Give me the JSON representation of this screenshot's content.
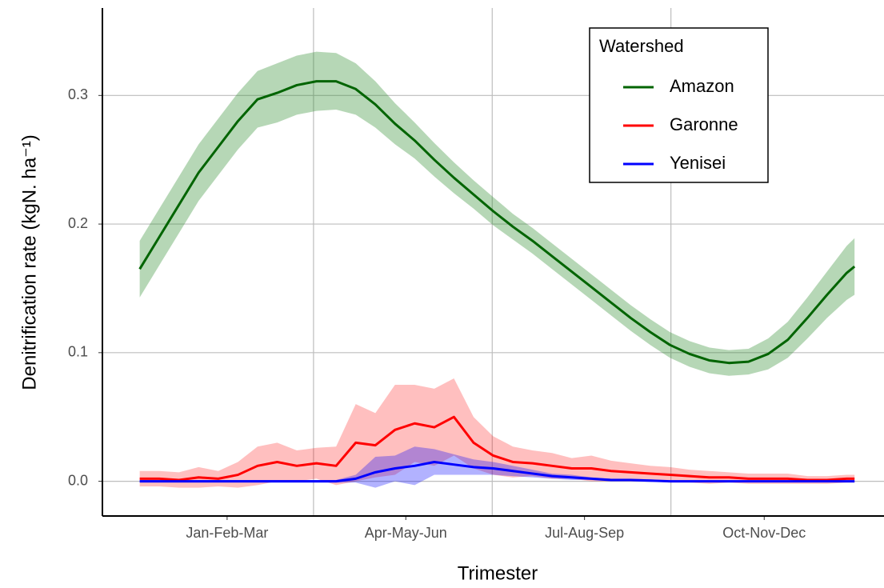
{
  "chart_data": {
    "type": "line",
    "xlabel": "Trimester",
    "ylabel": "Denitrification rate (kgN. ha⁻¹)",
    "legend_title": "Watershed",
    "legend": "top-right",
    "grid": true,
    "x": [
      1,
      11,
      21,
      31,
      41,
      51,
      61,
      71,
      81,
      91,
      101,
      111,
      121,
      131,
      141,
      151,
      161,
      171,
      181,
      191,
      201,
      211,
      221,
      231,
      241,
      251,
      261,
      271,
      281,
      291,
      301,
      311,
      321,
      331,
      341,
      351,
      361,
      365
    ],
    "xlim": [
      -18,
      380
    ],
    "xticks": [
      {
        "value": 45.5,
        "label": "Jan-Feb-Mar"
      },
      {
        "value": 136.5,
        "label": "Apr-May-Jun"
      },
      {
        "value": 227.5,
        "label": "Jul-Aug-Sep"
      },
      {
        "value": 319,
        "label": "Oct-Nov-Dec"
      }
    ],
    "xgrid": [
      89.5,
      180.5,
      271.5
    ],
    "ylim": [
      -0.027,
      0.368
    ],
    "yticks": [
      {
        "value": 0,
        "label": "0.0"
      },
      0.1,
      0.2,
      0.3
    ],
    "series": [
      {
        "name": "Amazon",
        "color": "#006400",
        "band_color": "#2e8b2e",
        "values": [
          0.165,
          0.19,
          0.215,
          0.24,
          0.26,
          0.28,
          0.297,
          0.302,
          0.308,
          0.311,
          0.311,
          0.305,
          0.293,
          0.278,
          0.265,
          0.25,
          0.236,
          0.223,
          0.21,
          0.198,
          0.187,
          0.175,
          0.163,
          0.151,
          0.139,
          0.127,
          0.116,
          0.106,
          0.099,
          0.094,
          0.092,
          0.093,
          0.099,
          0.11,
          0.127,
          0.145,
          0.162,
          0.167
        ],
        "errors": [
          0.022,
          0.022,
          0.022,
          0.022,
          0.022,
          0.022,
          0.022,
          0.023,
          0.023,
          0.023,
          0.022,
          0.02,
          0.018,
          0.016,
          0.014,
          0.013,
          0.012,
          0.011,
          0.011,
          0.01,
          0.01,
          0.01,
          0.01,
          0.01,
          0.01,
          0.01,
          0.01,
          0.01,
          0.01,
          0.01,
          0.01,
          0.01,
          0.012,
          0.014,
          0.016,
          0.018,
          0.021,
          0.022
        ]
      },
      {
        "name": "Garonne",
        "color": "#ff0000",
        "band_color": "#ff0000",
        "values": [
          0.002,
          0.002,
          0.001,
          0.003,
          0.002,
          0.005,
          0.012,
          0.015,
          0.012,
          0.014,
          0.012,
          0.03,
          0.028,
          0.04,
          0.045,
          0.042,
          0.05,
          0.03,
          0.02,
          0.015,
          0.014,
          0.012,
          0.01,
          0.01,
          0.008,
          0.007,
          0.006,
          0.005,
          0.004,
          0.003,
          0.003,
          0.002,
          0.002,
          0.002,
          0.001,
          0.001,
          0.002,
          0.002
        ],
        "errors": [
          0.006,
          0.006,
          0.006,
          0.008,
          0.006,
          0.01,
          0.015,
          0.015,
          0.012,
          0.012,
          0.015,
          0.03,
          0.025,
          0.035,
          0.03,
          0.03,
          0.03,
          0.02,
          0.015,
          0.012,
          0.01,
          0.01,
          0.008,
          0.01,
          0.008,
          0.007,
          0.006,
          0.006,
          0.005,
          0.005,
          0.004,
          0.004,
          0.004,
          0.004,
          0.003,
          0.003,
          0.003,
          0.003
        ]
      },
      {
        "name": "Yenisei",
        "color": "#0000ff",
        "band_color": "#0000ff",
        "values": [
          0,
          0,
          0,
          0,
          0,
          0,
          0,
          0,
          0,
          0,
          0,
          0.002,
          0.007,
          0.01,
          0.012,
          0.015,
          0.013,
          0.011,
          0.01,
          0.008,
          0.006,
          0.004,
          0.003,
          0.002,
          0.001,
          0.001,
          0.0005,
          0,
          0,
          0,
          0,
          0,
          0,
          0,
          0,
          0,
          0,
          0
        ],
        "errors": [
          0.001,
          0.001,
          0.001,
          0.001,
          0.001,
          0.001,
          0.001,
          0.001,
          0.001,
          0.001,
          0.001,
          0.003,
          0.012,
          0.01,
          0.015,
          0.01,
          0.008,
          0.006,
          0.005,
          0.004,
          0.003,
          0.002,
          0.002,
          0.001,
          0.001,
          0.001,
          0.001,
          0.0005,
          0.0005,
          0.0005,
          0.0005,
          0.0005,
          0.0005,
          0.0005,
          0.0005,
          0.0005,
          0.0005,
          0.0005
        ]
      }
    ]
  }
}
